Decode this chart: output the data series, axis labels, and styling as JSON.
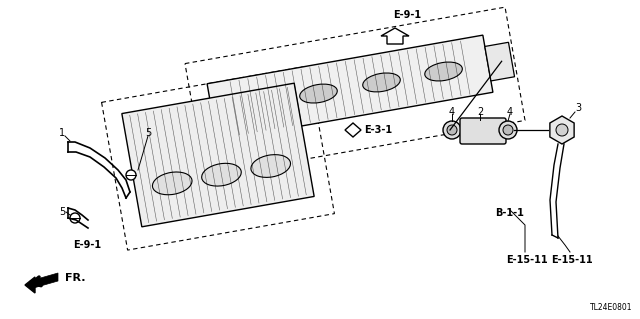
{
  "bg_color": "#ffffff",
  "diagram_id": "TL24E0801",
  "labels": {
    "e91_top": "E-9-1",
    "e31": "E-3-1",
    "e91_bottom": "E-9-1",
    "b11": "B-1-1",
    "e1511_left": "E-15-11",
    "e1511_right": "E-15-11",
    "fr": "FR.",
    "num1": "1",
    "num2": "2",
    "num3": "3",
    "num4a": "4",
    "num4b": "4",
    "num5a": "5",
    "num5b": "5"
  }
}
